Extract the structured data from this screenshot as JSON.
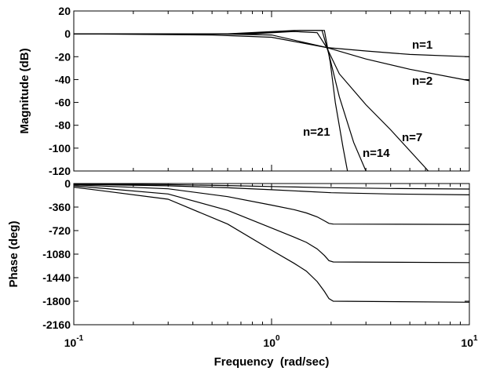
{
  "chart_data": [
    {
      "type": "line",
      "title": "",
      "xlabel": "",
      "ylabel": "Magnitude (dB)",
      "x_scale": "log",
      "xlim": [
        0.1,
        10
      ],
      "ylim": [
        -120,
        20
      ],
      "grid": false,
      "yticks": [
        "20",
        "0",
        "-20",
        "-40",
        "-60",
        "-80",
        "-100",
        "-120"
      ],
      "ytick_values": [
        20,
        0,
        -20,
        -40,
        -60,
        -80,
        -100,
        -120
      ],
      "annotations": [
        "n=1",
        "n=2",
        "n=7",
        "n=14",
        "n=21"
      ],
      "series": [
        {
          "name": "n=1",
          "points": [
            [
              0.1,
              0
            ],
            [
              0.5,
              -1
            ],
            [
              1,
              -3
            ],
            [
              1.9,
              -12
            ],
            [
              3,
              -15
            ],
            [
              5,
              -18
            ],
            [
              10,
              -20
            ]
          ]
        },
        {
          "name": "n=2",
          "points": [
            [
              0.1,
              0
            ],
            [
              0.5,
              0
            ],
            [
              1,
              -1
            ],
            [
              1.9,
              -12
            ],
            [
              3,
              -22
            ],
            [
              5,
              -31
            ],
            [
              10,
              -41
            ]
          ]
        },
        {
          "name": "n=7",
          "points": [
            [
              0.1,
              0
            ],
            [
              0.8,
              0
            ],
            [
              1.3,
              2
            ],
            [
              1.7,
              1
            ],
            [
              1.9,
              -12
            ],
            [
              2.2,
              -35
            ],
            [
              3,
              -62
            ],
            [
              4,
              -84
            ],
            [
              6.2,
              -120
            ]
          ]
        },
        {
          "name": "n=14",
          "points": [
            [
              0.1,
              0
            ],
            [
              0.7,
              0
            ],
            [
              1.4,
              3
            ],
            [
              1.8,
              3
            ],
            [
              1.95,
              -18
            ],
            [
              2.2,
              -55
            ],
            [
              2.6,
              -95
            ],
            [
              3.0,
              -120
            ]
          ]
        },
        {
          "name": "n=21",
          "points": [
            [
              0.1,
              0
            ],
            [
              0.6,
              0
            ],
            [
              1.3,
              3
            ],
            [
              1.85,
              3
            ],
            [
              1.98,
              -25
            ],
            [
              2.1,
              -60
            ],
            [
              2.3,
              -100
            ],
            [
              2.42,
              -120
            ]
          ]
        }
      ]
    },
    {
      "type": "line",
      "title": "",
      "xlabel": "Frequency  (rad/sec)",
      "ylabel": "Phase (deg)",
      "x_scale": "log",
      "xlim": [
        0.1,
        10
      ],
      "ylim": [
        -2160,
        0
      ],
      "grid": false,
      "yticks": [
        "0",
        "-360",
        "-720",
        "-1080",
        "-1440",
        "-1800",
        "-2160"
      ],
      "ytick_values": [
        0,
        -360,
        -720,
        -1080,
        -1440,
        -1800,
        -2160
      ],
      "xticks": [
        {
          "base": "10",
          "exp": "-1"
        },
        {
          "base": "10",
          "exp": "0"
        },
        {
          "base": "10",
          "exp": "1"
        }
      ],
      "xtick_values": [
        0.1,
        1,
        10
      ],
      "series": [
        {
          "name": "n=1",
          "points": [
            [
              0.1,
              -6
            ],
            [
              0.3,
              -17
            ],
            [
              0.6,
              -31
            ],
            [
              1,
              -45
            ],
            [
              2,
              -63
            ],
            [
              4,
              -76
            ],
            [
              10,
              -84
            ]
          ]
        },
        {
          "name": "n=2",
          "points": [
            [
              0.1,
              -12
            ],
            [
              0.3,
              -35
            ],
            [
              0.6,
              -65
            ],
            [
              1,
              -95
            ],
            [
              2,
              -140
            ],
            [
              4,
              -160
            ],
            [
              10,
              -173
            ]
          ]
        },
        {
          "name": "n=7",
          "points": [
            [
              0.1,
              -20
            ],
            [
              0.3,
              -80
            ],
            [
              0.6,
              -200
            ],
            [
              1,
              -330
            ],
            [
              1.3,
              -400
            ],
            [
              1.5,
              -450
            ],
            [
              1.7,
              -510
            ],
            [
              1.85,
              -570
            ],
            [
              1.95,
              -610
            ],
            [
              2.05,
              -620
            ],
            [
              10,
              -625
            ]
          ]
        },
        {
          "name": "n=14",
          "points": [
            [
              0.1,
              -35
            ],
            [
              0.3,
              -160
            ],
            [
              0.6,
              -410
            ],
            [
              1,
              -680
            ],
            [
              1.3,
              -820
            ],
            [
              1.5,
              -900
            ],
            [
              1.7,
              -1000
            ],
            [
              1.85,
              -1100
            ],
            [
              1.95,
              -1180
            ],
            [
              2.05,
              -1200
            ],
            [
              10,
              -1210
            ]
          ]
        },
        {
          "name": "n=21",
          "points": [
            [
              0.1,
              -55
            ],
            [
              0.3,
              -240
            ],
            [
              0.6,
              -620
            ],
            [
              1,
              -1020
            ],
            [
              1.3,
              -1220
            ],
            [
              1.5,
              -1340
            ],
            [
              1.7,
              -1500
            ],
            [
              1.85,
              -1650
            ],
            [
              1.95,
              -1760
            ],
            [
              2.05,
              -1800
            ],
            [
              10,
              -1815
            ]
          ]
        }
      ]
    }
  ]
}
